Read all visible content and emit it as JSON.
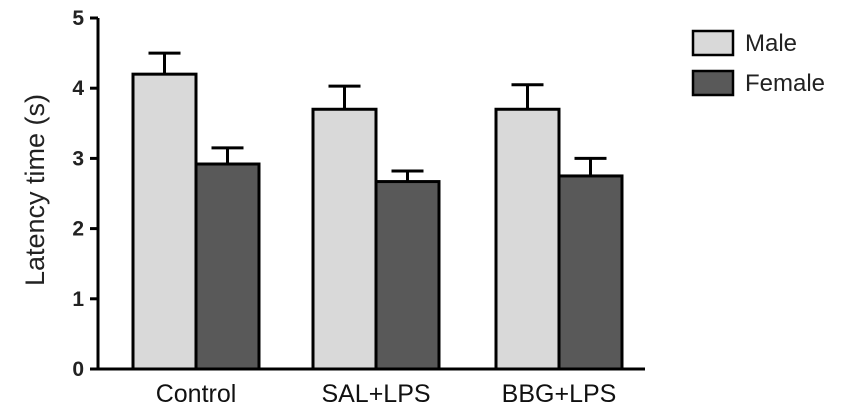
{
  "chart_data": {
    "type": "bar",
    "categories": [
      "Control",
      "SAL+LPS",
      "BBG+LPS"
    ],
    "series": [
      {
        "name": "Male",
        "values": [
          4.2,
          3.7,
          3.7
        ],
        "errors": [
          0.3,
          0.33,
          0.35
        ],
        "color": "#d9d9d9"
      },
      {
        "name": "Female",
        "values": [
          2.92,
          2.67,
          2.75
        ],
        "errors": [
          0.23,
          0.15,
          0.25
        ],
        "color": "#595959"
      }
    ],
    "ylabel": "Latency time (s)",
    "xlabel": "",
    "ylim": [
      0,
      5
    ],
    "yticks": [
      0,
      1,
      2,
      3,
      4,
      5
    ],
    "grid": false,
    "legend_position": "top-right"
  }
}
